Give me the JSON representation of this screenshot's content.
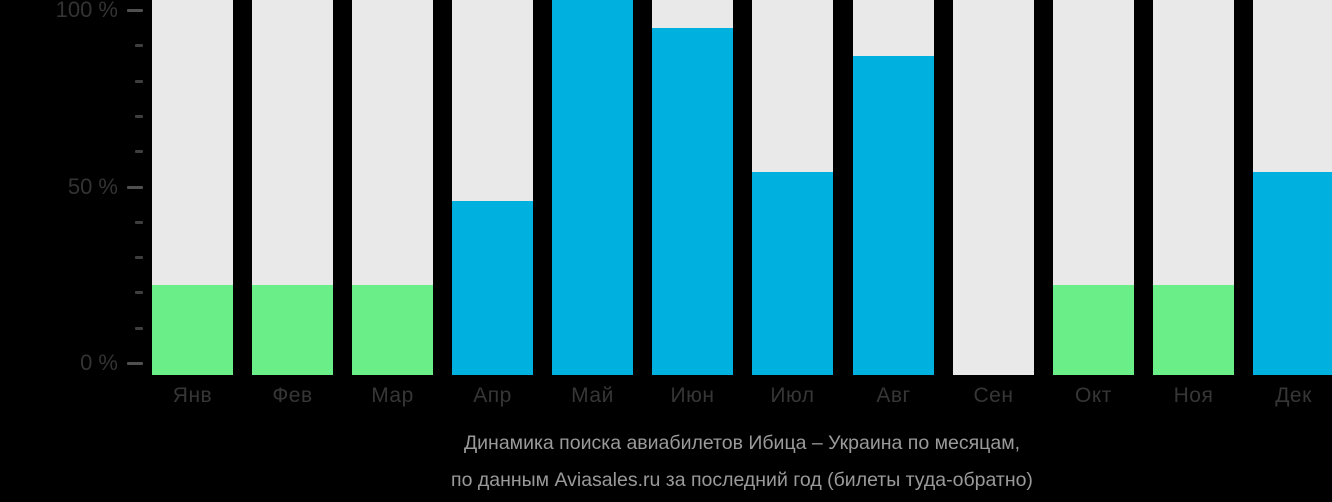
{
  "caption": {
    "line1": "Динамика поиска авиабилетов Ибица – Украина по месяцам,",
    "line2": "по данным Aviasales.ru за последний год (билеты туда-обратно)"
  },
  "colors": {
    "background": "#000000",
    "bar_background": "#e9e9e9",
    "green": "#6aee87",
    "blue": "#00b0de",
    "axis_text": "#333333",
    "month_text": "#363636",
    "major_tick": "#4f4f4f",
    "minor_tick": "#3e3e3e",
    "caption_text": "#9a9a9a"
  },
  "y_axis": {
    "min": 0,
    "max": 100,
    "minor_step": 10,
    "major_ticks": [
      0,
      50,
      100
    ],
    "major_tick_labels": {
      "0": "0 %",
      "50": "50 %",
      "100": "100 %"
    }
  },
  "chart_data": {
    "type": "bar",
    "title": "Динамика поиска авиабилетов Ибица – Украина по месяцам, по данным Aviasales.ru за последний год (билеты туда-обратно)",
    "categories": [
      "Янв",
      "Фев",
      "Мар",
      "Апр",
      "Май",
      "Июн",
      "Июл",
      "Авг",
      "Сен",
      "Окт",
      "Ноя",
      "Дек"
    ],
    "values": [
      22,
      22,
      22,
      46,
      100,
      95,
      54,
      87,
      0,
      22,
      22,
      54
    ],
    "bar_colors": [
      "green",
      "green",
      "green",
      "blue",
      "blue",
      "blue",
      "blue",
      "blue",
      "none",
      "green",
      "green",
      "blue"
    ],
    "xlabel": "",
    "ylabel": "",
    "ylim": [
      0,
      100
    ],
    "grid": false,
    "legend": false
  }
}
